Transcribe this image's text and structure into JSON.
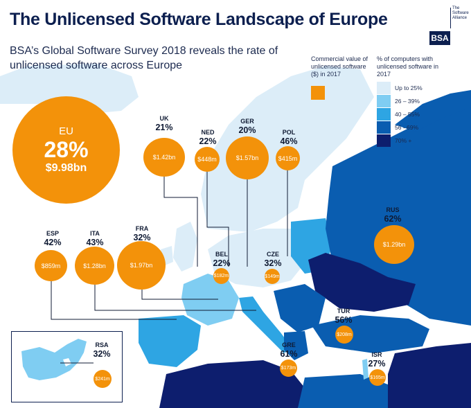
{
  "title": "The Unlicensed Software Landscape of Europe",
  "subtitle": "BSA’s Global Software Survey 2018 reveals the rate of unlicensed software across Europe",
  "logo": {
    "tagline": "The Software Alliance",
    "mark": "BSA"
  },
  "legend": {
    "value_title": "Commercial value of unlicensed software ($) in 2017",
    "value_color": "#f3920a",
    "pct_title": "% of computers with unlicensed software in 2017",
    "bins": [
      {
        "label": "Up to 25%",
        "color": "#dcedf8"
      },
      {
        "label": "26 – 39%",
        "color": "#7fcdf2"
      },
      {
        "label": "40 – 55%",
        "color": "#2ea5e3"
      },
      {
        "label": "56 - 69%",
        "color": "#0a5db0"
      },
      {
        "label": "70% +",
        "color": "#0d1e6e"
      }
    ]
  },
  "eu": {
    "name": "EU",
    "pct": "28%",
    "value": "$9.98bn"
  },
  "countries": {
    "uk": {
      "name": "UK",
      "pct": "21%",
      "value": "$1.42bn"
    },
    "ned": {
      "name": "NED",
      "pct": "22%",
      "value": "$448m"
    },
    "ger": {
      "name": "GER",
      "pct": "20%",
      "value": "$1.57bn"
    },
    "pol": {
      "name": "POL",
      "pct": "46%",
      "value": "$415m"
    },
    "rus": {
      "name": "RUS",
      "pct": "62%",
      "value": "$1.29bn"
    },
    "esp": {
      "name": "ESP",
      "pct": "42%",
      "value": "$859m"
    },
    "ita": {
      "name": "ITA",
      "pct": "43%",
      "value": "$1.28bn"
    },
    "fra": {
      "name": "FRA",
      "pct": "32%",
      "value": "$1.97bn"
    },
    "bel": {
      "name": "BEL",
      "pct": "22%",
      "value": "$182m"
    },
    "cze": {
      "name": "CZE",
      "pct": "32%",
      "value": "$149m"
    },
    "tur": {
      "name": "TUR",
      "pct": "56%",
      "value": "$208m"
    },
    "rsa": {
      "name": "RSA",
      "pct": "32%",
      "value": "$241m"
    },
    "gre": {
      "name": "GRE",
      "pct": "61%",
      "value": "$173m"
    },
    "isr": {
      "name": "ISR",
      "pct": "27%",
      "value": "$165m"
    }
  }
}
